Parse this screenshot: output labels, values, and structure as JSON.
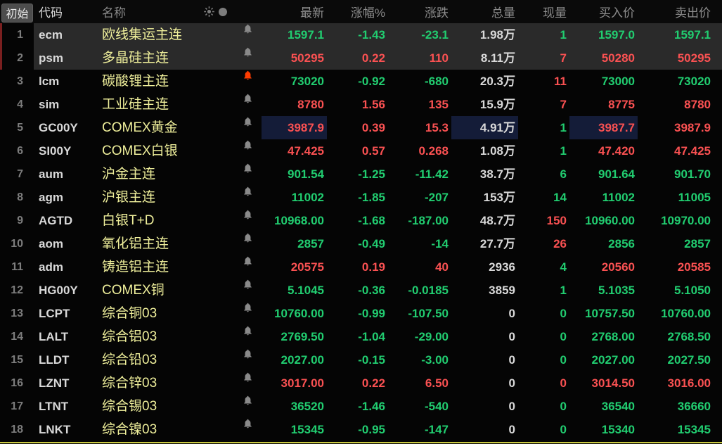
{
  "header": {
    "corner_label": "初始",
    "columns": {
      "code": "代码",
      "name": "名称",
      "latest": "最新",
      "pct": "涨幅%",
      "chg": "涨跌",
      "vol": "总量",
      "cur": "现量",
      "buy": "买入价",
      "sell": "卖出价"
    },
    "icon_names": [
      "sun-icon",
      "circle-icon"
    ]
  },
  "colors": {
    "up": "#fa5152",
    "down": "#21cd70",
    "neutral": "#d9d9d9",
    "name_text": "#efef9b",
    "header_text": "#8c8c8c",
    "row_highlight": "#2a2a2a",
    "flash_cell_bg": "#141c38",
    "bell_gray": "#8a8a8a",
    "bell_alert": "#ff3c00",
    "bottom_line": "#c9c940",
    "left_strip": "#7a1f1f"
  },
  "rows": [
    {
      "idx": "1",
      "code": "ecm",
      "name": "欧线集运主连",
      "bell": "gray",
      "latest": "1597.1",
      "pct": "-1.43",
      "chg": "-23.1",
      "vol": "1.98万",
      "cur": "1",
      "buy": "1597.0",
      "sell": "1597.1",
      "dir": "down",
      "cur_dir": "down",
      "highlighted": true,
      "flash": []
    },
    {
      "idx": "2",
      "code": "psm",
      "name": "多晶硅主连",
      "bell": "gray",
      "latest": "50295",
      "pct": "0.22",
      "chg": "110",
      "vol": "8.11万",
      "cur": "7",
      "buy": "50280",
      "sell": "50295",
      "dir": "up",
      "cur_dir": "up",
      "highlighted": true,
      "flash": []
    },
    {
      "idx": "3",
      "code": "lcm",
      "name": "碳酸锂主连",
      "bell": "alert",
      "latest": "73020",
      "pct": "-0.92",
      "chg": "-680",
      "vol": "20.3万",
      "cur": "11",
      "buy": "73000",
      "sell": "73020",
      "dir": "down",
      "cur_dir": "up",
      "highlighted": false,
      "flash": []
    },
    {
      "idx": "4",
      "code": "sim",
      "name": "工业硅主连",
      "bell": "gray",
      "latest": "8780",
      "pct": "1.56",
      "chg": "135",
      "vol": "15.9万",
      "cur": "7",
      "buy": "8775",
      "sell": "8780",
      "dir": "up",
      "cur_dir": "up",
      "highlighted": false,
      "flash": []
    },
    {
      "idx": "5",
      "code": "GC00Y",
      "name": "COMEX黄金",
      "bell": "gray",
      "latest": "3987.9",
      "pct": "0.39",
      "chg": "15.3",
      "vol": "4.91万",
      "cur": "1",
      "buy": "3987.7",
      "sell": "3987.9",
      "dir": "up",
      "cur_dir": "down",
      "highlighted": false,
      "flash": [
        "latest",
        "vol",
        "buy"
      ]
    },
    {
      "idx": "6",
      "code": "SI00Y",
      "name": "COMEX白银",
      "bell": "gray",
      "latest": "47.425",
      "pct": "0.57",
      "chg": "0.268",
      "vol": "1.08万",
      "cur": "1",
      "buy": "47.420",
      "sell": "47.425",
      "dir": "up",
      "cur_dir": "down",
      "highlighted": false,
      "flash": []
    },
    {
      "idx": "7",
      "code": "aum",
      "name": "沪金主连",
      "bell": "gray",
      "latest": "901.54",
      "pct": "-1.25",
      "chg": "-11.42",
      "vol": "38.7万",
      "cur": "6",
      "buy": "901.64",
      "sell": "901.70",
      "dir": "down",
      "cur_dir": "down",
      "highlighted": false,
      "flash": []
    },
    {
      "idx": "8",
      "code": "agm",
      "name": "沪银主连",
      "bell": "gray",
      "latest": "11002",
      "pct": "-1.85",
      "chg": "-207",
      "vol": "153万",
      "cur": "14",
      "buy": "11002",
      "sell": "11005",
      "dir": "down",
      "cur_dir": "down",
      "highlighted": false,
      "flash": []
    },
    {
      "idx": "9",
      "code": "AGTD",
      "name": "白银T+D",
      "bell": "gray",
      "latest": "10968.00",
      "pct": "-1.68",
      "chg": "-187.00",
      "vol": "48.7万",
      "cur": "150",
      "buy": "10960.00",
      "sell": "10970.00",
      "dir": "down",
      "cur_dir": "up",
      "highlighted": false,
      "flash": []
    },
    {
      "idx": "10",
      "code": "aom",
      "name": "氧化铝主连",
      "bell": "gray",
      "latest": "2857",
      "pct": "-0.49",
      "chg": "-14",
      "vol": "27.7万",
      "cur": "26",
      "buy": "2856",
      "sell": "2857",
      "dir": "down",
      "cur_dir": "up",
      "highlighted": false,
      "flash": []
    },
    {
      "idx": "11",
      "code": "adm",
      "name": "铸造铝主连",
      "bell": "gray",
      "latest": "20575",
      "pct": "0.19",
      "chg": "40",
      "vol": "2936",
      "cur": "4",
      "buy": "20560",
      "sell": "20585",
      "dir": "up",
      "cur_dir": "down",
      "highlighted": false,
      "flash": []
    },
    {
      "idx": "12",
      "code": "HG00Y",
      "name": "COMEX铜",
      "bell": "gray",
      "latest": "5.1045",
      "pct": "-0.36",
      "chg": "-0.0185",
      "vol": "3859",
      "cur": "1",
      "buy": "5.1035",
      "sell": "5.1050",
      "dir": "down",
      "cur_dir": "down",
      "highlighted": false,
      "flash": []
    },
    {
      "idx": "13",
      "code": "LCPT",
      "name": "综合铜03",
      "bell": "gray",
      "latest": "10760.00",
      "pct": "-0.99",
      "chg": "-107.50",
      "vol": "0",
      "cur": "0",
      "buy": "10757.50",
      "sell": "10760.00",
      "dir": "down",
      "cur_dir": "down",
      "highlighted": false,
      "flash": []
    },
    {
      "idx": "14",
      "code": "LALT",
      "name": "综合铝03",
      "bell": "gray",
      "latest": "2769.50",
      "pct": "-1.04",
      "chg": "-29.00",
      "vol": "0",
      "cur": "0",
      "buy": "2768.00",
      "sell": "2768.50",
      "dir": "down",
      "cur_dir": "down",
      "highlighted": false,
      "flash": []
    },
    {
      "idx": "15",
      "code": "LLDT",
      "name": "综合铅03",
      "bell": "gray",
      "latest": "2027.00",
      "pct": "-0.15",
      "chg": "-3.00",
      "vol": "0",
      "cur": "0",
      "buy": "2027.00",
      "sell": "2027.50",
      "dir": "down",
      "cur_dir": "down",
      "highlighted": false,
      "flash": []
    },
    {
      "idx": "16",
      "code": "LZNT",
      "name": "综合锌03",
      "bell": "gray",
      "latest": "3017.00",
      "pct": "0.22",
      "chg": "6.50",
      "vol": "0",
      "cur": "0",
      "buy": "3014.50",
      "sell": "3016.00",
      "dir": "up",
      "cur_dir": "up",
      "highlighted": false,
      "flash": []
    },
    {
      "idx": "17",
      "code": "LTNT",
      "name": "综合锡03",
      "bell": "gray",
      "latest": "36520",
      "pct": "-1.46",
      "chg": "-540",
      "vol": "0",
      "cur": "0",
      "buy": "36540",
      "sell": "36660",
      "dir": "down",
      "cur_dir": "down",
      "highlighted": false,
      "flash": []
    },
    {
      "idx": "18",
      "code": "LNKT",
      "name": "综合镍03",
      "bell": "gray",
      "latest": "15345",
      "pct": "-0.95",
      "chg": "-147",
      "vol": "0",
      "cur": "0",
      "buy": "15340",
      "sell": "15345",
      "dir": "down",
      "cur_dir": "down",
      "highlighted": false,
      "flash": []
    }
  ]
}
